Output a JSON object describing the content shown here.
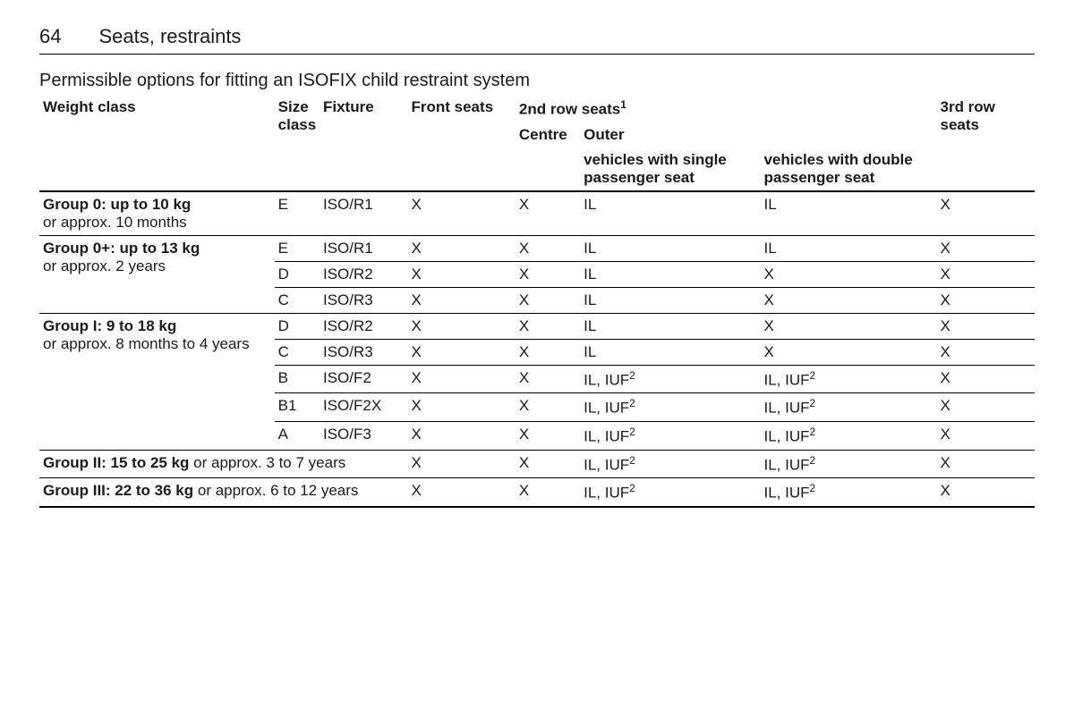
{
  "page": {
    "number": "64",
    "section": "Seats, restraints"
  },
  "subtitle": "Permissible options for fitting an ISOFIX child restraint system",
  "headers": {
    "weight": "Weight class",
    "size": "Size class",
    "fixture": "Fixture",
    "front": "Front seats",
    "row2": "2nd row seats",
    "row2_sup": "1",
    "centre": "Centre",
    "outer": "Outer",
    "single": "vehicles with single passenger seat",
    "double": "vehicles with double passenger seat",
    "row3": "3rd row seats"
  },
  "groups": [
    {
      "title": "Group 0: up to 10 kg",
      "sub": "or approx. 10 months",
      "rows": [
        {
          "size": "E",
          "fixture": "ISO/R1",
          "front": "X",
          "centre": "X",
          "single": "IL",
          "double": "IL",
          "third": "X"
        }
      ]
    },
    {
      "title": "Group 0+: up to 13 kg",
      "sub": "or approx. 2 years",
      "rows": [
        {
          "size": "E",
          "fixture": "ISO/R1",
          "front": "X",
          "centre": "X",
          "single": "IL",
          "double": "IL",
          "third": "X"
        },
        {
          "size": "D",
          "fixture": "ISO/R2",
          "front": "X",
          "centre": "X",
          "single": "IL",
          "double": "X",
          "third": "X"
        },
        {
          "size": "C",
          "fixture": "ISO/R3",
          "front": "X",
          "centre": "X",
          "single": "IL",
          "double": "X",
          "third": "X"
        }
      ]
    },
    {
      "title": "Group I: 9 to 18 kg",
      "sub": "or approx. 8 months to 4 years",
      "rows": [
        {
          "size": "D",
          "fixture": "ISO/R2",
          "front": "X",
          "centre": "X",
          "single": "IL",
          "double": "X",
          "third": "X"
        },
        {
          "size": "C",
          "fixture": "ISO/R3",
          "front": "X",
          "centre": "X",
          "single": "IL",
          "double": "X",
          "third": "X"
        },
        {
          "size": "B",
          "fixture": "ISO/F2",
          "front": "X",
          "centre": "X",
          "single": "IL, IUF",
          "single_sup": "2",
          "double": "IL, IUF",
          "double_sup": "2",
          "third": "X"
        },
        {
          "size": "B1",
          "fixture": "ISO/F2X",
          "front": "X",
          "centre": "X",
          "single": "IL, IUF",
          "single_sup": "2",
          "double": "IL, IUF",
          "double_sup": "2",
          "third": "X"
        },
        {
          "size": "A",
          "fixture": "ISO/F3",
          "front": "X",
          "centre": "X",
          "single": "IL, IUF",
          "single_sup": "2",
          "double": "IL, IUF",
          "double_sup": "2",
          "third": "X"
        }
      ]
    },
    {
      "title": "Group II: 15 to 25 kg",
      "sub_inline": " or approx. 3 to 7 years",
      "rows": [
        {
          "front": "X",
          "centre": "X",
          "single": "IL, IUF",
          "single_sup": "2",
          "double": "IL, IUF",
          "double_sup": "2",
          "third": "X"
        }
      ]
    },
    {
      "title": "Group III: 22 to 36 kg",
      "sub_inline": " or approx. 6 to 12 years",
      "rows": [
        {
          "front": "X",
          "centre": "X",
          "single": "IL, IUF",
          "single_sup": "2",
          "double": "IL, IUF",
          "double_sup": "2",
          "third": "X"
        }
      ]
    }
  ]
}
